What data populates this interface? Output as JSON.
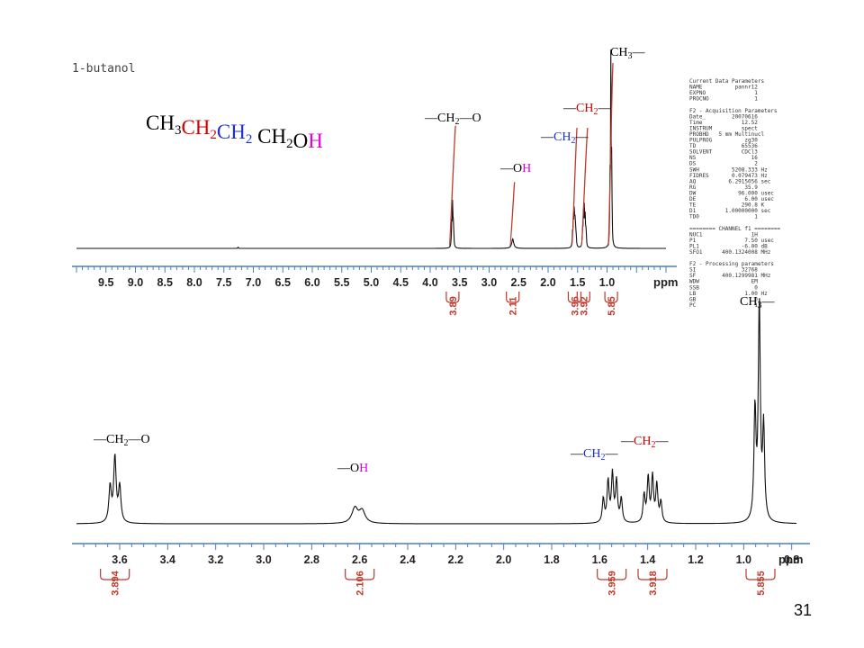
{
  "page": {
    "sample_label": "1-butanol",
    "page_number": "31"
  },
  "formula": {
    "parts": [
      {
        "text": "CH",
        "color": "#000000",
        "sub": "3"
      },
      {
        "text": "CH",
        "color": "#d10000",
        "sub": "2"
      },
      {
        "text": "CH",
        "color": "#1a2fd6",
        "sub": "2"
      },
      {
        "text": " CH",
        "color": "#000000",
        "sub": "2"
      },
      {
        "text": "O",
        "color": "#000000",
        "sub": ""
      },
      {
        "text": "H",
        "color": "#e000e0",
        "sub": ""
      }
    ]
  },
  "peak_labels": {
    "ch2o": {
      "prefix": "—CH",
      "sub": "2",
      "suffix": "—O",
      "color": "#000000"
    },
    "oh": {
      "prefix": "—O",
      "h": "H",
      "h_color": "#e000e0",
      "color": "#000000"
    },
    "ch2_red": {
      "prefix": "—",
      "main": "CH",
      "sub": "2",
      "suffix": "—",
      "color": "#d10000"
    },
    "ch2_blue": {
      "prefix": "—",
      "main": "CH",
      "sub": "2",
      "suffix": "—",
      "color": "#1a2fd6"
    },
    "ch3": {
      "prefix": "CH",
      "sub": "3",
      "suffix": "—",
      "color": "#000000"
    }
  },
  "parameters": [
    "Current Data Parameters",
    "NAME          pannr12",
    "EXPNO               1",
    "PROCNO              1",
    "",
    "F2 - Acquisition Parameters",
    "Date_        20070616",
    "Time            12.52",
    "INSTRUM         spect",
    "PROBHD   5 mm Multinucl",
    "PULPROG          zg30",
    "TD              65536",
    "SOLVENT         CDCl3",
    "NS                 16",
    "DS                  2",
    "SWH          5208.333 Hz",
    "FIDRES       0.079473 Hz",
    "AQ          6.2915056 sec",
    "RG               35.9",
    "DW             96.000 usec",
    "DE               6.00 usec",
    "TE              290.8 K",
    "D1         1.00000000 sec",
    "TD0                 1",
    "",
    "======== CHANNEL f1 ========",
    "NUC1               1H",
    "P1               7.50 usec",
    "PL1             -6.00 dB",
    "SFO1      400.1324008 MHz",
    "",
    "F2 - Processing parameters",
    "SI              32768",
    "SF        400.1299981 MHz",
    "WDW                EM",
    "SSB                 0",
    "LB               1.00 Hz",
    "GB                  0",
    "PC                  1"
  ],
  "chart_data": [
    {
      "type": "line",
      "title": "1-butanol",
      "xlabel": "ppm",
      "xlim": [
        10.0,
        0.0
      ],
      "x_reversed": true,
      "tick_labels": [
        "9.5",
        "9.0",
        "8.5",
        "8.0",
        "7.5",
        "7.0",
        "6.5",
        "6.0",
        "5.5",
        "5.0",
        "4.5",
        "4.0",
        "3.5",
        "3.0",
        "2.5",
        "2.0",
        "1.5",
        "1.0"
      ],
      "peaks": [
        {
          "group": "CH2-O",
          "shift": 3.62,
          "rel_height": 0.26,
          "integral_curve_top": 0.6
        },
        {
          "group": "OH",
          "shift": 2.6,
          "rel_height": 0.05,
          "integral_curve_top": 0.36
        },
        {
          "group": "CH2 (blue)",
          "shift": 1.55,
          "rel_height": 0.18,
          "integral_curve_top": 0.62
        },
        {
          "group": "CH2 (red)",
          "shift": 1.4,
          "rel_height": 0.18,
          "integral_curve_top": 0.63
        },
        {
          "group": "CH3",
          "shift": 0.93,
          "rel_height": 1.0,
          "integral_curve_top": 1.0
        }
      ],
      "integrals": [
        {
          "shift": 3.62,
          "value": "3.89"
        },
        {
          "shift": 2.6,
          "value": "2.11"
        },
        {
          "shift": 1.55,
          "value": "3.96"
        },
        {
          "shift": 1.4,
          "value": "3.92"
        },
        {
          "shift": 0.93,
          "value": "5.85"
        }
      ]
    },
    {
      "type": "line",
      "xlabel": "ppm",
      "xlim": [
        3.78,
        0.78
      ],
      "x_reversed": true,
      "tick_labels": [
        "3.6",
        "3.4",
        "3.2",
        "3.0",
        "2.8",
        "2.6",
        "2.4",
        "2.2",
        "2.0",
        "1.8",
        "1.6",
        "1.4",
        "1.2",
        "1.0",
        "0.8"
      ],
      "peaks": [
        {
          "group": "CH2-O",
          "shift": 3.62,
          "multiplicity": "triplet",
          "rel_height": 0.32
        },
        {
          "group": "OH",
          "shift": 2.6,
          "multiplicity": "broad",
          "rel_height": 0.1
        },
        {
          "group": "CH2 (blue)",
          "shift": 1.55,
          "multiplicity": "quintet",
          "rel_height": 0.26
        },
        {
          "group": "CH2 (red)",
          "shift": 1.38,
          "multiplicity": "sextet",
          "rel_height": 0.25
        },
        {
          "group": "CH3",
          "shift": 0.93,
          "multiplicity": "triplet",
          "rel_height": 1.0
        }
      ],
      "integrals": [
        {
          "shift": 3.62,
          "value": "3.894"
        },
        {
          "shift": 2.6,
          "value": "2.106"
        },
        {
          "shift": 1.55,
          "value": "3.959"
        },
        {
          "shift": 1.38,
          "value": "3.918"
        },
        {
          "shift": 0.93,
          "value": "5.855"
        }
      ]
    }
  ]
}
